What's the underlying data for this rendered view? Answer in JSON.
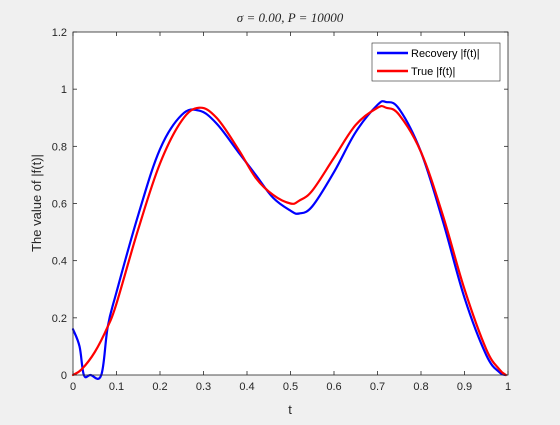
{
  "chart_data": {
    "type": "line",
    "title": "σ = 0.00,    P = 10000",
    "xlabel": "t",
    "ylabel": "The value of |f(t)|",
    "xlim": [
      0,
      1
    ],
    "ylim": [
      0,
      1.2
    ],
    "x_ticks": [
      "0",
      "0.1",
      "0.2",
      "0.3",
      "0.4",
      "0.5",
      "0.6",
      "0.7",
      "0.8",
      "0.9",
      "1"
    ],
    "y_ticks": [
      "0",
      "0.2",
      "0.4",
      "0.6",
      "0.8",
      "1",
      "1.2"
    ],
    "grid": false,
    "legend_position": "top-right",
    "series": [
      {
        "name": "Recovery |f(t)|",
        "color": "#0000ff",
        "x": [
          0,
          0.015,
          0.025,
          0.04,
          0.065,
          0.08,
          0.1,
          0.15,
          0.2,
          0.25,
          0.29,
          0.33,
          0.38,
          0.42,
          0.46,
          0.5,
          0.52,
          0.55,
          0.6,
          0.65,
          0.7,
          0.72,
          0.75,
          0.8,
          0.85,
          0.9,
          0.95,
          0.98,
          0.995
        ],
        "y": [
          0.16,
          0.1,
          0.0,
          0.0,
          0.0,
          0.17,
          0.29,
          0.56,
          0.79,
          0.91,
          0.925,
          0.88,
          0.78,
          0.7,
          0.62,
          0.575,
          0.565,
          0.59,
          0.71,
          0.85,
          0.945,
          0.955,
          0.93,
          0.78,
          0.54,
          0.27,
          0.07,
          0.01,
          0.0
        ]
      },
      {
        "name": "True |f(t)|",
        "color": "#ff0000",
        "x": [
          0,
          0.02,
          0.05,
          0.08,
          0.1,
          0.15,
          0.2,
          0.25,
          0.29,
          0.33,
          0.38,
          0.42,
          0.46,
          0.5,
          0.52,
          0.55,
          0.6,
          0.65,
          0.7,
          0.72,
          0.75,
          0.8,
          0.85,
          0.9,
          0.95,
          0.98,
          0.995
        ],
        "y": [
          0.0,
          0.02,
          0.08,
          0.17,
          0.25,
          0.51,
          0.74,
          0.89,
          0.935,
          0.9,
          0.79,
          0.69,
          0.63,
          0.6,
          0.61,
          0.645,
          0.76,
          0.875,
          0.935,
          0.935,
          0.91,
          0.78,
          0.56,
          0.3,
          0.09,
          0.02,
          0.0
        ]
      }
    ]
  }
}
